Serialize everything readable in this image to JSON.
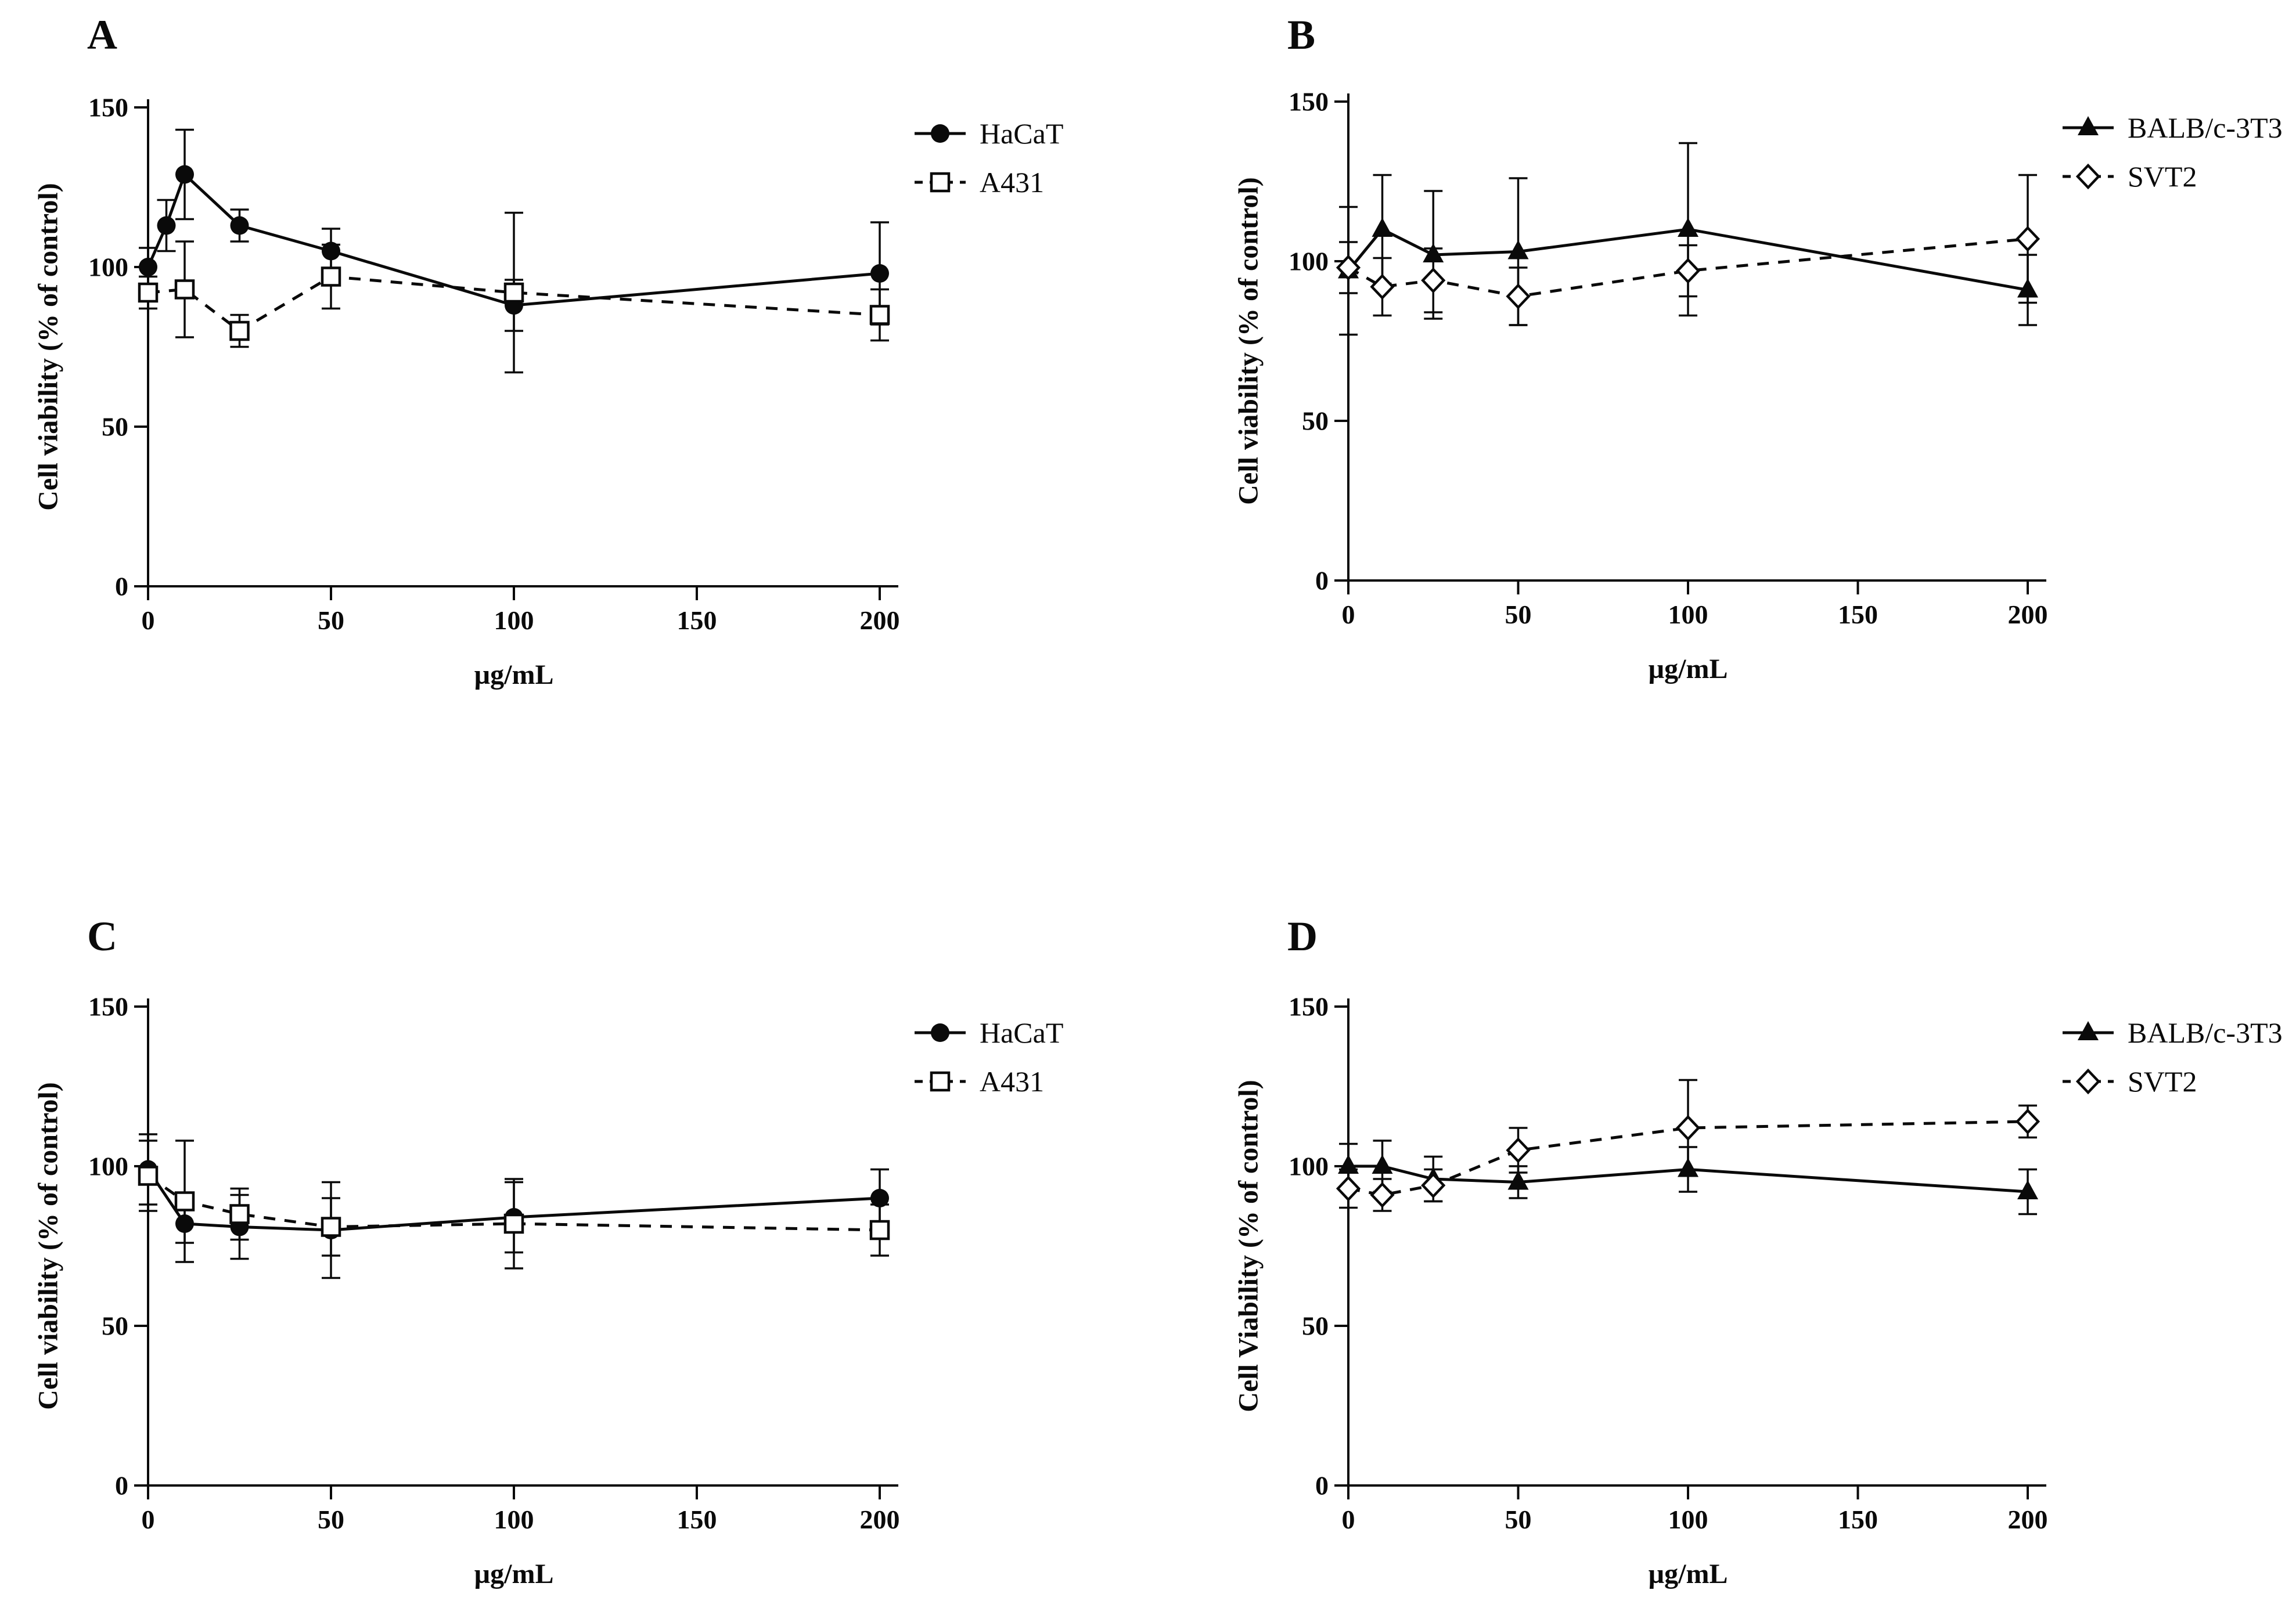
{
  "figure": {
    "background": "#ffffff",
    "ink": "#0a0a0a"
  },
  "chart_data": [
    {
      "type": "line",
      "panel_label": "A",
      "title": "",
      "xlabel": "µg/mL",
      "ylabel": "Cell viability (% of control)",
      "xlim": [
        0,
        200
      ],
      "ylim": [
        0,
        150
      ],
      "xticks": [
        0,
        50,
        100,
        150,
        200
      ],
      "yticks": [
        0,
        50,
        100,
        150
      ],
      "grid": "off",
      "legend_position": "right-top",
      "series": [
        {
          "name": "HaCaT",
          "marker": "circle-filled",
          "line": "solid",
          "x": [
            0,
            5,
            10,
            25,
            50,
            100,
            200
          ],
          "y": [
            100,
            113,
            129,
            113,
            105,
            88,
            98
          ],
          "err": [
            6,
            8,
            14,
            5,
            7,
            8,
            16
          ]
        },
        {
          "name": "A431",
          "marker": "square-open",
          "line": "dashed",
          "x": [
            0,
            10,
            25,
            50,
            100,
            200
          ],
          "y": [
            92,
            93,
            80,
            97,
            92,
            85
          ],
          "err": [
            5,
            15,
            5,
            10,
            25,
            8
          ]
        }
      ]
    },
    {
      "type": "line",
      "panel_label": "B",
      "title": "",
      "xlabel": "µg/mL",
      "ylabel": "Cell viability (% of control)",
      "xlim": [
        0,
        200
      ],
      "ylim": [
        0,
        150
      ],
      "xticks": [
        0,
        50,
        100,
        150,
        200
      ],
      "yticks": [
        0,
        50,
        100,
        150
      ],
      "grid": "off",
      "legend_position": "right-top",
      "series": [
        {
          "name": "BALB/c-3T3",
          "marker": "triangle-filled",
          "line": "solid",
          "x": [
            0,
            10,
            25,
            50,
            100,
            200
          ],
          "y": [
            97,
            110,
            102,
            103,
            110,
            91
          ],
          "err": [
            20,
            17,
            20,
            23,
            27,
            11
          ]
        },
        {
          "name": "SVT2",
          "marker": "diamond-open",
          "line": "dashed",
          "x": [
            0,
            10,
            25,
            50,
            100,
            200
          ],
          "y": [
            98,
            92,
            94,
            89,
            97,
            107
          ],
          "err": [
            8,
            9,
            10,
            9,
            8,
            20
          ]
        }
      ]
    },
    {
      "type": "line",
      "panel_label": "C",
      "title": "",
      "xlabel": "µg/mL",
      "ylabel": "Cell viability (% of control)",
      "xlim": [
        0,
        200
      ],
      "ylim": [
        0,
        150
      ],
      "xticks": [
        0,
        50,
        100,
        150,
        200
      ],
      "yticks": [
        0,
        50,
        100,
        150
      ],
      "grid": "off",
      "legend_position": "right-top",
      "series": [
        {
          "name": "HaCaT",
          "marker": "circle-filled",
          "line": "solid",
          "x": [
            0,
            10,
            25,
            50,
            100,
            200
          ],
          "y": [
            99,
            82,
            81,
            80,
            84,
            90
          ],
          "err": [
            11,
            6,
            10,
            15,
            11,
            9
          ]
        },
        {
          "name": "A431",
          "marker": "square-open",
          "line": "dashed",
          "x": [
            0,
            10,
            25,
            50,
            100,
            200
          ],
          "y": [
            97,
            89,
            85,
            81,
            82,
            80
          ],
          "err": [
            11,
            19,
            8,
            9,
            14,
            8
          ]
        }
      ]
    },
    {
      "type": "line",
      "panel_label": "D",
      "title": "",
      "xlabel": "µg/mL",
      "ylabel": "Cell Viability (% of control)",
      "xlim": [
        0,
        200
      ],
      "ylim": [
        0,
        150
      ],
      "xticks": [
        0,
        50,
        100,
        150,
        200
      ],
      "yticks": [
        0,
        50,
        100,
        150
      ],
      "grid": "off",
      "legend_position": "right-top",
      "series": [
        {
          "name": "BALB/c-3T3",
          "marker": "triangle-filled",
          "line": "solid",
          "x": [
            0,
            10,
            25,
            50,
            100,
            200
          ],
          "y": [
            100,
            100,
            96,
            95,
            99,
            92
          ],
          "err": [
            7,
            8,
            7,
            5,
            7,
            7
          ]
        },
        {
          "name": "SVT2",
          "marker": "diamond-open",
          "line": "dashed",
          "x": [
            0,
            10,
            25,
            50,
            100,
            200
          ],
          "y": [
            93,
            91,
            94,
            105,
            112,
            114
          ],
          "err": [
            6,
            5,
            5,
            7,
            15,
            5
          ]
        }
      ]
    }
  ]
}
